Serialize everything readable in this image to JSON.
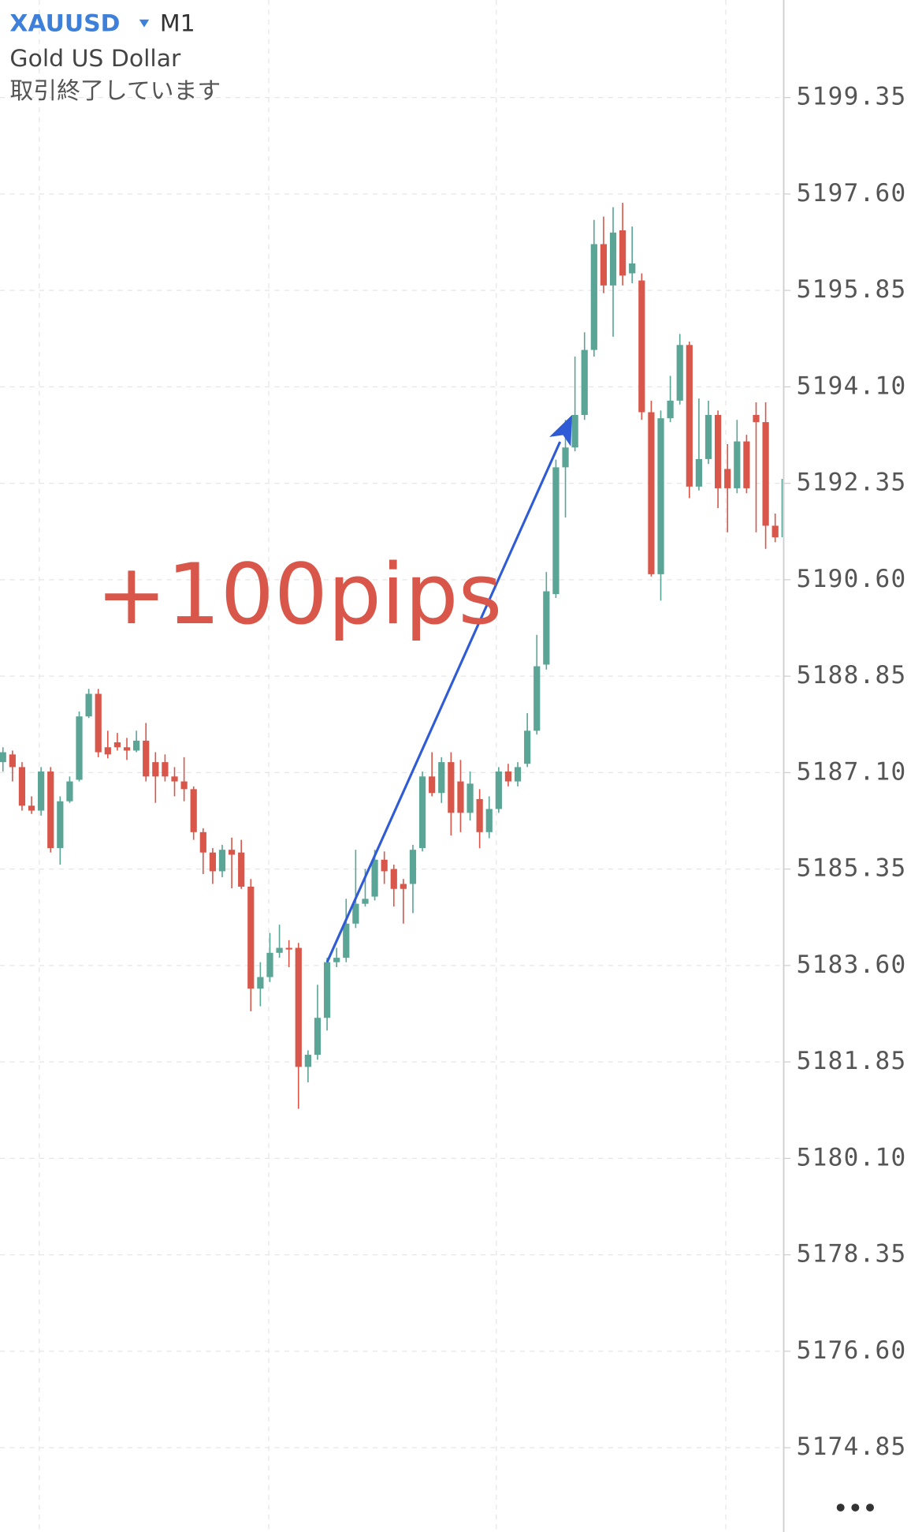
{
  "chart_data": {
    "type": "candlestick",
    "symbol": "XAUUSD",
    "timeframe": "M1",
    "subtitle": "Gold US Dollar",
    "status": "取引終了しています",
    "annotation": "+100pips",
    "up_color": "#5aa596",
    "down_color": "#d9574a",
    "arrow_color": "#2f5bd6",
    "grid": true,
    "ylim": [
      5173.32,
      5201.12
    ],
    "yticks": [
      5199.35,
      {
        "value": 5197.6,
        "label": "5197.60"
      },
      5195.85,
      {
        "value": 5194.1,
        "label": "5194.10"
      },
      5192.35,
      {
        "value": 5190.6,
        "label": "5190.60"
      },
      5188.85,
      {
        "value": 5187.1,
        "label": "5187.10"
      },
      5185.35,
      {
        "value": 5183.6,
        "label": "5183.60"
      },
      5181.85,
      {
        "value": 5180.1,
        "label": "5180.10"
      },
      5178.35,
      {
        "value": 5176.6,
        "label": "5176.60"
      },
      5174.85
    ],
    "candles": {
      "open": [
        5187.29,
        5187.43,
        5187.2,
        5186.5,
        5186.41,
        5187.12,
        5185.73,
        5186.58,
        5186.97,
        5188.12,
        5188.53,
        5187.56,
        5187.65,
        5187.56,
        5187.5,
        5187.68,
        5187.29,
        5187.29,
        5187.03,
        5186.94,
        5186.8,
        5186.02,
        5185.65,
        5185.31,
        5185.7,
        5185.65,
        5185.03,
        5183.18,
        5183.39,
        5183.83,
        5183.92,
        5183.92,
        5181.76,
        5181.98,
        5182.65,
        5183.66,
        5183.74,
        5184.36,
        5184.72,
        5184.85,
        5185.52,
        5185.35,
        5185.08,
        5185.08,
        5185.73,
        5187.03,
        5186.73,
        5187.29,
        5186.94,
        5186.37,
        5186.62,
        5186.02,
        5186.44,
        5187.12,
        5186.94,
        5187.26,
        5187.86,
        5189.06,
        5190.34,
        5192.64,
        5193.0,
        5193.59,
        5194.77,
        5196.69,
        5195.94,
        5196.94,
        5196.16,
        5196.03,
        5193.64,
        5190.7,
        5193.53,
        5193.85,
        5194.86,
        5192.29,
        5192.79,
        5193.59,
        5192.61,
        5192.26,
        5193.11,
        5193.59,
        5193.46,
        5191.58,
        5191.37
      ],
      "high": [
        5187.56,
        5187.5,
        5187.29,
        5186.67,
        5187.2,
        5187.2,
        5186.67,
        5187.03,
        5188.21,
        5188.62,
        5188.62,
        5187.86,
        5187.82,
        5187.73,
        5187.86,
        5188.0,
        5187.47,
        5187.43,
        5187.2,
        5187.38,
        5186.85,
        5186.09,
        5185.73,
        5185.79,
        5185.92,
        5185.88,
        5185.17,
        5183.66,
        5184.19,
        5184.34,
        5184.06,
        5184.01,
        5182.06,
        5183.25,
        5183.74,
        5183.92,
        5184.81,
        5185.7,
        5185.35,
        5185.7,
        5185.67,
        5185.43,
        5185.17,
        5185.79,
        5187.12,
        5187.47,
        5187.38,
        5187.47,
        5187.33,
        5187.12,
        5186.8,
        5186.67,
        5187.2,
        5187.26,
        5187.29,
        5188.18,
        5189.6,
        5190.74,
        5192.78,
        5193.5,
        5194.65,
        5195.09,
        5197.13,
        5197.19,
        5197.36,
        5197.44,
        5197.01,
        5196.16,
        5193.85,
        5193.67,
        5194.3,
        5195.06,
        5194.92,
        5193.89,
        5193.85,
        5193.67,
        5193.06,
        5193.5,
        5193.23,
        5193.82,
        5193.82,
        5191.8,
        5192.65
      ],
      "low": [
        5187.12,
        5186.94,
        5186.41,
        5186.35,
        5186.32,
        5185.65,
        5185.43,
        5186.55,
        5186.94,
        5188.09,
        5187.38,
        5187.36,
        5187.5,
        5187.33,
        5187.47,
        5186.94,
        5186.55,
        5186.94,
        5186.67,
        5186.58,
        5185.88,
        5185.26,
        5185.08,
        5185.2,
        5185.0,
        5184.99,
        5182.77,
        5182.86,
        5183.3,
        5183.74,
        5183.57,
        5181.0,
        5181.48,
        5181.89,
        5182.42,
        5183.57,
        5183.66,
        5184.28,
        5184.67,
        5184.78,
        5185.08,
        5184.67,
        5184.36,
        5184.55,
        5185.67,
        5186.67,
        5186.55,
        5185.96,
        5186.02,
        5186.23,
        5185.73,
        5185.91,
        5186.37,
        5186.85,
        5186.85,
        5187.2,
        5187.79,
        5188.97,
        5190.27,
        5191.73,
        5192.93,
        5193.5,
        5194.65,
        5195.8,
        5195.01,
        5195.94,
        5195.98,
        5193.5,
        5190.66,
        5190.22,
        5193.46,
        5193.78,
        5192.08,
        5192.22,
        5192.7,
        5191.9,
        5191.46,
        5192.17,
        5192.17,
        5191.46,
        5191.16,
        5191.28,
        5191.02
      ],
      "close": [
        5187.47,
        5187.2,
        5186.5,
        5186.41,
        5187.12,
        5185.73,
        5186.58,
        5186.94,
        5188.12,
        5188.53,
        5187.47,
        5187.43,
        5187.56,
        5187.5,
        5187.68,
        5187.03,
        5187.03,
        5187.03,
        5186.94,
        5186.8,
        5186.02,
        5185.65,
        5185.31,
        5185.7,
        5185.61,
        5185.03,
        5183.18,
        5183.39,
        5183.83,
        5183.92,
        5183.89,
        5181.76,
        5181.98,
        5182.65,
        5183.66,
        5183.74,
        5184.36,
        5184.72,
        5184.81,
        5185.52,
        5185.31,
        5184.99,
        5184.99,
        5185.7,
        5187.03,
        5186.73,
        5187.29,
        5186.37,
        5186.37,
        5186.9,
        5186.02,
        5186.44,
        5187.12,
        5186.94,
        5187.2,
        5187.86,
        5189.03,
        5190.39,
        5192.64,
        5193.0,
        5193.59,
        5194.77,
        5196.69,
        5195.94,
        5196.9,
        5196.12,
        5196.34,
        5193.64,
        5190.7,
        5193.53,
        5193.85,
        5194.86,
        5192.29,
        5192.79,
        5193.59,
        5192.26,
        5192.26,
        5193.11,
        5192.26,
        5193.46,
        5191.58,
        5191.37,
        5192.43
      ]
    }
  }
}
